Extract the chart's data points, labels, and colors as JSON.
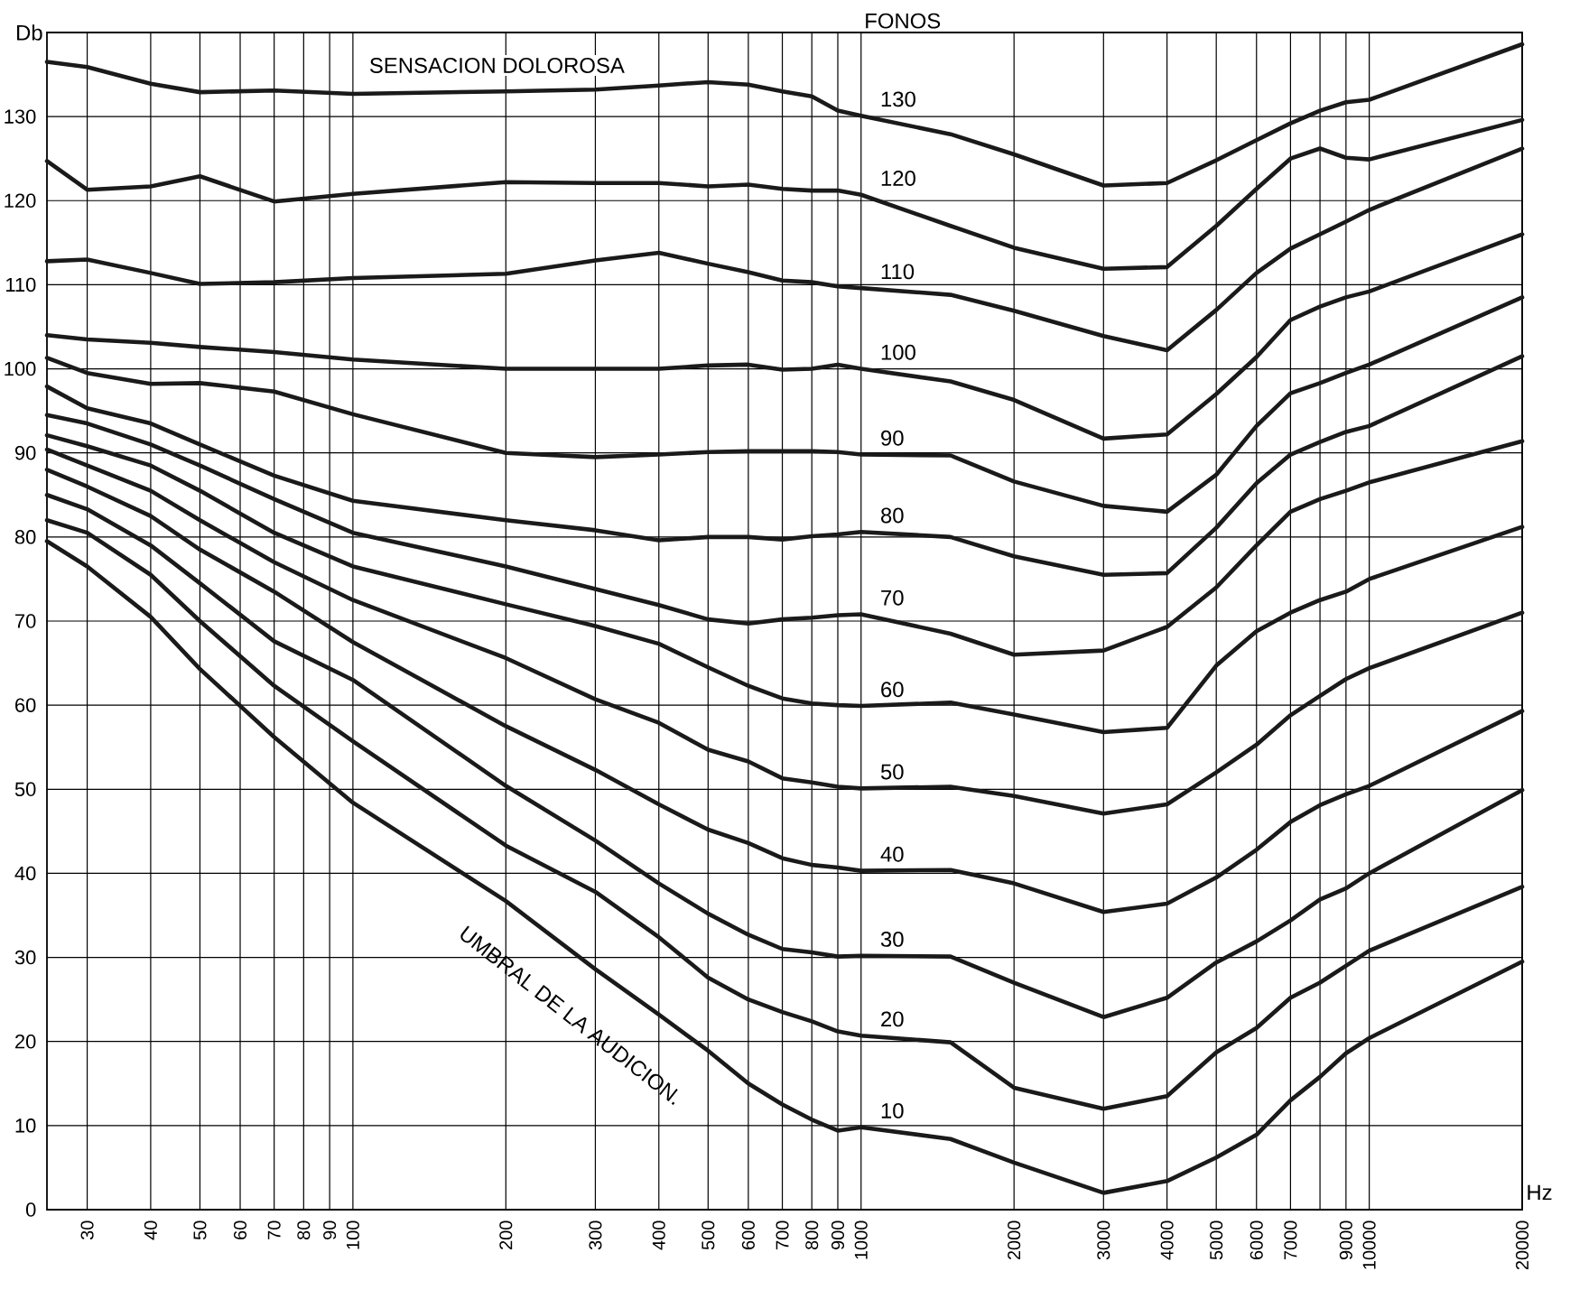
{
  "chart_data": {
    "type": "line",
    "title": "FONOS",
    "xlabel": "Hz",
    "ylabel": "Db",
    "x": [
      25,
      30,
      40,
      50,
      70,
      100,
      200,
      300,
      400,
      500,
      600,
      700,
      800,
      900,
      1000,
      1500,
      2000,
      3000,
      4000,
      5000,
      6000,
      7000,
      8000,
      9000,
      10000,
      20000
    ],
    "log": "x",
    "grid": true,
    "xlim": [
      25,
      20000
    ],
    "ylim": [
      0,
      140
    ],
    "xticks": [
      30,
      40,
      50,
      60,
      70,
      80,
      90,
      100,
      200,
      300,
      400,
      500,
      600,
      700,
      800,
      900,
      1000,
      2000,
      3000,
      4000,
      5000,
      6000,
      7000,
      {
        "value": 8000,
        "label": null
      },
      9000,
      10000,
      20000
    ],
    "yticks": [
      0,
      10,
      20,
      30,
      40,
      50,
      60,
      70,
      80,
      90,
      100,
      110,
      120,
      130
    ],
    "annotations": [
      "SENSACION DOLOROSA",
      "UMBRAL DE LA AUDICION."
    ],
    "series": [
      {
        "name": "10",
        "color": "#1a1a1a",
        "values": [
          79.5,
          76.5,
          70.5,
          64.3,
          56.2,
          48.4,
          36.7,
          28.6,
          23.2,
          18.9,
          15,
          12.5,
          10.7,
          9.4,
          9.8,
          8.4,
          5.6,
          2,
          3.4,
          6.2,
          8.9,
          13,
          15.8,
          18.6,
          20.4,
          29.5
        ]
      },
      {
        "name": "20",
        "color": "#1a1a1a",
        "values": [
          82,
          80.5,
          75.5,
          70,
          62.3,
          55.7,
          43.3,
          37.8,
          32.4,
          27.6,
          25,
          23.5,
          22.4,
          21.2,
          20.7,
          19.9,
          14.5,
          12,
          13.5,
          18.7,
          21.6,
          25.2,
          27,
          29,
          30.8,
          38.4
        ]
      },
      {
        "name": "30",
        "color": "#1a1a1a",
        "values": [
          85,
          83.3,
          79,
          74.5,
          67.6,
          63,
          50.4,
          43.9,
          38.8,
          35.2,
          32.7,
          31,
          30.6,
          30.1,
          30.2,
          30.1,
          27,
          22.9,
          25.2,
          29.4,
          31.9,
          34.4,
          36.9,
          38.2,
          40,
          49.9
        ]
      },
      {
        "name": "40",
        "color": "#1a1a1a",
        "values": [
          88,
          86,
          82.5,
          78.5,
          73.5,
          67.5,
          57.5,
          52.3,
          48.2,
          45.2,
          43.6,
          41.8,
          41,
          40.7,
          40.3,
          40.4,
          38.8,
          35.4,
          36.4,
          39.5,
          42.8,
          46.1,
          48.1,
          49.4,
          50.4,
          59.3
        ]
      },
      {
        "name": "50",
        "color": "#1a1a1a",
        "values": [
          90.4,
          88.5,
          85.5,
          82,
          77,
          72.5,
          65.6,
          60.7,
          57.9,
          54.7,
          53.3,
          51.3,
          50.8,
          50.3,
          50.1,
          50.3,
          49.2,
          47.1,
          48.2,
          52,
          55.3,
          58.8,
          61.1,
          63.1,
          64.4,
          71
        ]
      },
      {
        "name": "60",
        "color": "#1a1a1a",
        "values": [
          92.1,
          90.8,
          88.5,
          85.5,
          80.5,
          76.5,
          72,
          69.4,
          67.3,
          64.5,
          62.3,
          60.8,
          60.2,
          60,
          59.9,
          60.3,
          58.9,
          56.8,
          57.3,
          64.7,
          68.8,
          71,
          72.5,
          73.5,
          75,
          81.2
        ]
      },
      {
        "name": "70",
        "color": "#1a1a1a",
        "values": [
          94.5,
          93.5,
          91,
          88.5,
          84.5,
          80.5,
          76.5,
          73.8,
          71.9,
          70.2,
          69.7,
          70.2,
          70.4,
          70.7,
          70.8,
          68.5,
          66,
          66.5,
          69.3,
          74,
          79,
          83,
          84.5,
          85.5,
          86.5,
          91.4
        ]
      },
      {
        "name": "80",
        "color": "#1a1a1a",
        "values": [
          97.9,
          95.3,
          93.5,
          91,
          87.3,
          84.3,
          82,
          80.8,
          79.6,
          80,
          80,
          79.7,
          80.1,
          80.3,
          80.6,
          80,
          77.7,
          75.5,
          75.7,
          81.1,
          86.4,
          89.8,
          91.3,
          92.5,
          93.2,
          101.5
        ]
      },
      {
        "name": "90",
        "color": "#1a1a1a",
        "values": [
          101.3,
          99.5,
          98.2,
          98.3,
          97.3,
          94.6,
          90,
          89.5,
          89.8,
          90.1,
          90.2,
          90.2,
          90.2,
          90.1,
          89.8,
          89.7,
          86.6,
          83.7,
          83,
          87.4,
          93.2,
          97.1,
          98.3,
          99.5,
          100.5,
          108.5
        ]
      },
      {
        "name": "100",
        "color": "#1a1a1a",
        "values": [
          104,
          103.5,
          103.1,
          102.6,
          102,
          101.1,
          100,
          100,
          100,
          100.4,
          100.5,
          99.9,
          100,
          100.5,
          100,
          98.5,
          96.3,
          91.7,
          92.2,
          97,
          101.4,
          105.8,
          107.4,
          108.5,
          109.2,
          116
        ]
      },
      {
        "name": "110",
        "color": "#1a1a1a",
        "values": [
          112.8,
          113,
          111.4,
          110.1,
          110.3,
          110.8,
          111.3,
          112.9,
          113.8,
          112.5,
          111.5,
          110.5,
          110.3,
          109.8,
          109.6,
          108.8,
          106.9,
          103.9,
          102.2,
          107,
          111.4,
          114.3,
          116,
          117.5,
          118.9,
          126.2
        ]
      },
      {
        "name": "120",
        "color": "#1a1a1a",
        "values": [
          124.7,
          121.3,
          121.7,
          122.9,
          119.9,
          120.8,
          122.2,
          122.1,
          122.1,
          121.7,
          121.9,
          121.4,
          121.2,
          121.2,
          120.7,
          117,
          114.4,
          111.9,
          112.1,
          117,
          121.4,
          125,
          126.2,
          125.1,
          124.9,
          129.6
        ]
      },
      {
        "name": "130",
        "color": "#1a1a1a",
        "values": [
          136.5,
          135.9,
          133.9,
          132.9,
          133.1,
          132.7,
          133,
          133.2,
          133.7,
          134.1,
          133.8,
          133,
          132.4,
          130.7,
          130.1,
          127.9,
          125.5,
          121.8,
          122.1,
          124.8,
          127.2,
          129.2,
          130.7,
          131.7,
          132,
          138.6
        ]
      }
    ]
  }
}
